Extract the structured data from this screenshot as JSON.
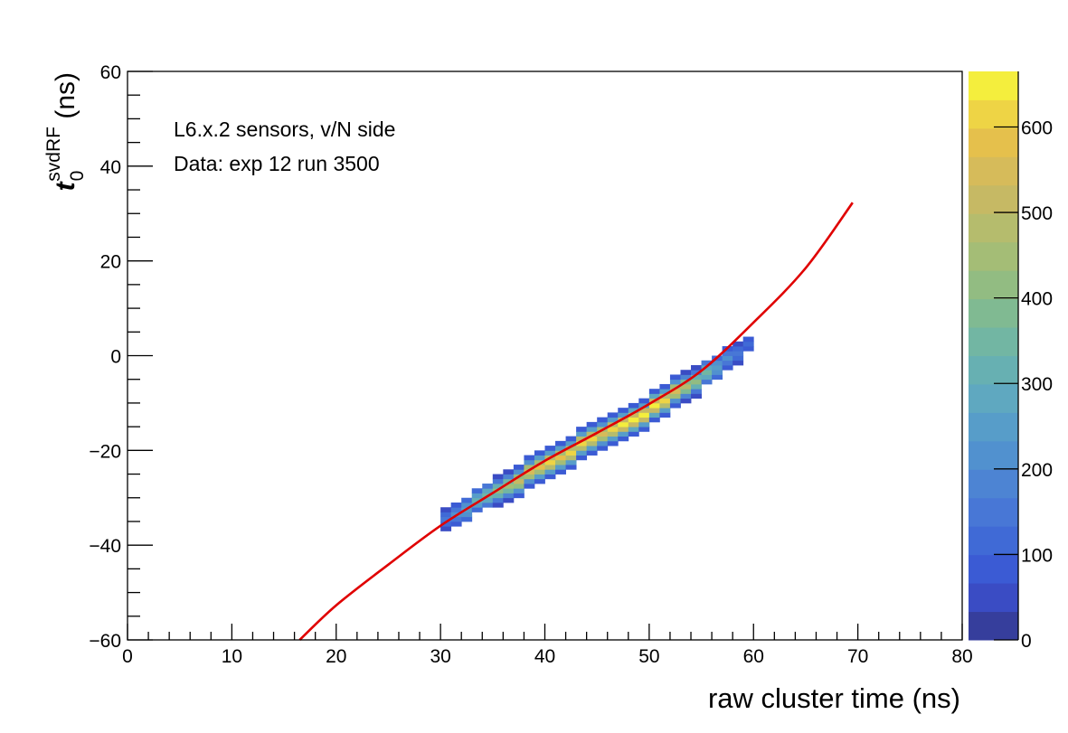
{
  "chart_data": {
    "type": "heatmap",
    "title": "",
    "xlabel": "raw cluster time (ns)",
    "ylabel": {
      "main": "t",
      "sub": "0",
      "sup": "svdRF",
      "unit": " (ns)"
    },
    "annotations": [
      "L6.x.2 sensors, v/N side",
      "Data: exp 12 run 3500"
    ],
    "xlim": [
      0,
      80
    ],
    "ylim": [
      -60,
      60
    ],
    "zlim": [
      0,
      665
    ],
    "xticks": [
      0,
      10,
      20,
      30,
      40,
      50,
      60,
      70,
      80
    ],
    "yticks": [
      -60,
      -40,
      -20,
      0,
      20,
      40,
      60
    ],
    "zticks": [
      0,
      100,
      200,
      300,
      400,
      500,
      600
    ],
    "x_minor_step": 2,
    "y_minor_step": 5,
    "bin_width_x": 1,
    "bin_width_y": 1,
    "palette": [
      "#363e9c",
      "#3a4cc4",
      "#3b5bd4",
      "#406ad6",
      "#4877d6",
      "#4d84d3",
      "#5191cf",
      "#579dc9",
      "#5fa8c0",
      "#67b0b2",
      "#72b6a3",
      "#80ba92",
      "#92bc82",
      "#a4bd76",
      "#b5bc6d",
      "#c6b964",
      "#d6bb5a",
      "#e5c04c",
      "#eed445",
      "#f4ee3d"
    ],
    "fit_color": "#e00000",
    "columns": [
      {
        "x": 30,
        "y_start": -38,
        "counts": [
          0,
          62,
          120,
          150,
          120,
          62,
          0
        ]
      },
      {
        "x": 31,
        "y_start": -37,
        "counts": [
          0,
          82,
          160,
          200,
          160,
          82,
          0
        ]
      },
      {
        "x": 32,
        "y_start": -36,
        "counts": [
          0,
          102,
          200,
          250,
          200,
          102,
          0
        ]
      },
      {
        "x": 33,
        "y_start": -34,
        "counts": [
          0,
          123,
          240,
          300,
          240,
          123,
          0
        ]
      },
      {
        "x": 34,
        "y_start": -33,
        "counts": [
          0,
          144,
          280,
          350,
          280,
          144,
          0
        ]
      },
      {
        "x": 35,
        "y_start": -32,
        "counts": [
          54,
          164,
          320,
          400,
          320,
          164,
          54
        ]
      },
      {
        "x": 36,
        "y_start": -31,
        "counts": [
          61,
          185,
          360,
          450,
          360,
          185,
          61
        ]
      },
      {
        "x": 37,
        "y_start": -30,
        "counts": [
          70,
          213,
          416,
          520,
          416,
          213,
          70
        ]
      },
      {
        "x": 38,
        "y_start": -28,
        "counts": [
          76,
          230,
          448,
          560,
          448,
          230,
          76
        ]
      },
      {
        "x": 39,
        "y_start": -27,
        "counts": [
          78,
          238,
          464,
          580,
          464,
          238,
          78
        ]
      },
      {
        "x": 40,
        "y_start": -26,
        "counts": [
          81,
          246,
          480,
          600,
          480,
          246,
          81
        ]
      },
      {
        "x": 41,
        "y_start": -25,
        "counts": [
          78,
          238,
          464,
          580,
          464,
          238,
          78
        ]
      },
      {
        "x": 42,
        "y_start": -24,
        "counts": [
          81,
          246,
          480,
          600,
          480,
          246,
          81
        ]
      },
      {
        "x": 43,
        "y_start": -22,
        "counts": [
          84,
          254,
          496,
          620,
          496,
          254,
          84
        ]
      },
      {
        "x": 44,
        "y_start": -21,
        "counts": [
          81,
          246,
          480,
          600,
          480,
          246,
          81
        ]
      },
      {
        "x": 45,
        "y_start": -20,
        "counts": [
          76,
          230,
          448,
          560,
          448,
          230,
          76
        ]
      },
      {
        "x": 46,
        "y_start": -19,
        "counts": [
          81,
          246,
          480,
          600,
          480,
          246,
          81
        ]
      },
      {
        "x": 47,
        "y_start": -18,
        "counts": [
          86,
          262,
          512,
          640,
          512,
          262,
          86
        ]
      },
      {
        "x": 48,
        "y_start": -17,
        "counts": [
          89,
          271,
          528,
          660,
          528,
          271,
          89
        ]
      },
      {
        "x": 49,
        "y_start": -16,
        "counts": [
          86,
          262,
          512,
          640,
          512,
          262,
          86
        ]
      },
      {
        "x": 50,
        "y_start": -14,
        "counts": [
          89,
          271,
          528,
          660,
          528,
          271,
          89
        ]
      },
      {
        "x": 51,
        "y_start": -13,
        "counts": [
          84,
          254,
          496,
          620,
          496,
          254,
          84
        ]
      },
      {
        "x": 52,
        "y_start": -11,
        "counts": [
          76,
          230,
          448,
          560,
          448,
          230,
          76
        ]
      },
      {
        "x": 53,
        "y_start": -10,
        "counts": [
          65,
          197,
          384,
          480,
          384,
          197,
          65
        ]
      },
      {
        "x": 54,
        "y_start": -9,
        "counts": [
          54,
          164,
          320,
          400,
          320,
          164,
          54
        ]
      },
      {
        "x": 55,
        "y_start": -7,
        "counts": [
          0,
          139,
          272,
          340,
          272,
          139,
          0
        ]
      },
      {
        "x": 56,
        "y_start": -6,
        "counts": [
          0,
          107,
          208,
          260,
          208,
          107,
          0
        ]
      },
      {
        "x": 57,
        "y_start": -4,
        "counts": [
          0,
          82,
          160,
          200,
          160,
          82,
          0
        ]
      },
      {
        "x": 58,
        "y_start": -3,
        "counts": [
          0,
          66,
          128,
          160,
          128,
          66,
          0
        ]
      },
      {
        "x": 59,
        "y_start": -1,
        "counts": [
          0,
          0,
          96,
          120,
          96,
          0,
          0
        ]
      }
    ],
    "fit_curve": {
      "x": [
        16.5,
        20,
        25,
        30,
        35,
        40,
        45,
        50,
        55,
        60,
        65,
        69.5
      ],
      "y": [
        -60,
        -52.7,
        -44.1,
        -35.9,
        -29.0,
        -22.2,
        -16.3,
        -10.2,
        -3.2,
        7.0,
        18.5,
        32.3
      ]
    }
  }
}
